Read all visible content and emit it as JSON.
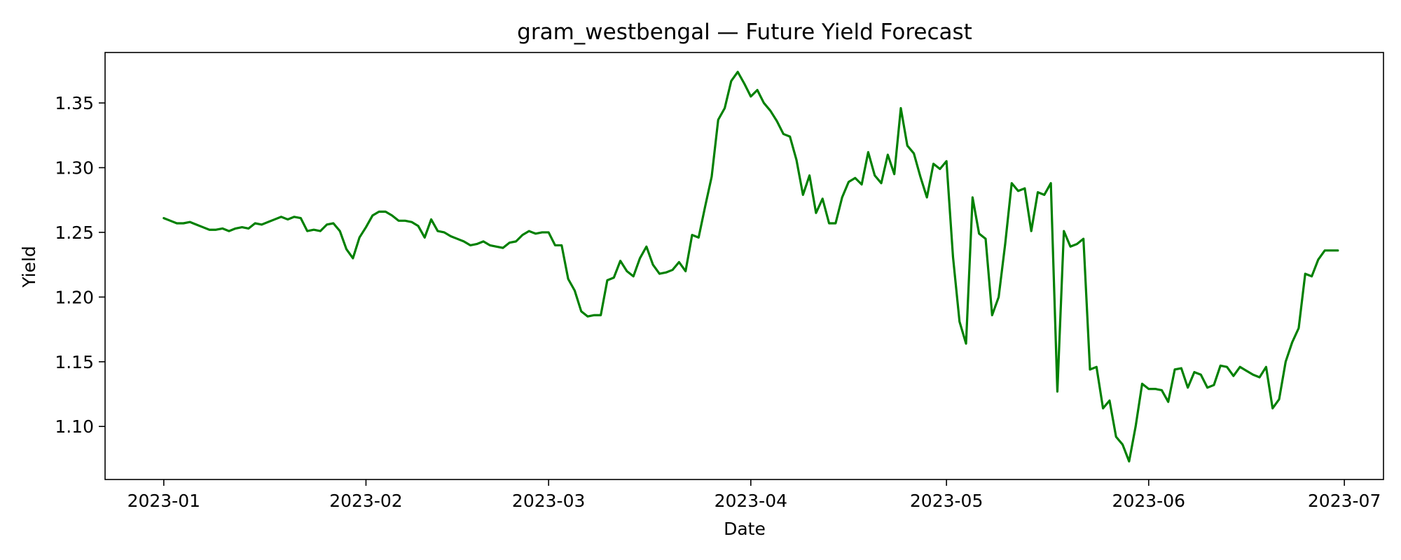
{
  "chart_data": {
    "type": "line",
    "title": "gram_westbengal — Future Yield Forecast",
    "xlabel": "Date",
    "ylabel": "Yield",
    "x_start": "2023-01-01",
    "x_end": "2023-06-30",
    "xlim": [
      "2022-12-23",
      "2023-07-07"
    ],
    "ylim": [
      1.059,
      1.389
    ],
    "x_ticks": [
      "2023-01-01",
      "2023-02-01",
      "2023-03-01",
      "2023-04-01",
      "2023-05-01",
      "2023-06-01",
      "2023-07-01"
    ],
    "x_tick_labels": [
      "2023-01",
      "2023-02",
      "2023-03",
      "2023-04",
      "2023-05",
      "2023-06",
      "2023-07"
    ],
    "y_ticks": [
      1.1,
      1.15,
      1.2,
      1.25,
      1.3,
      1.35
    ],
    "y_tick_labels": [
      "1.10",
      "1.15",
      "1.20",
      "1.25",
      "1.30",
      "1.35"
    ],
    "grid": false,
    "legend": "none",
    "line_color": "#008000",
    "series": [
      {
        "points": [
          [
            "2023-01-01",
            1.261
          ],
          [
            "2023-01-02",
            1.259
          ],
          [
            "2023-01-03",
            1.257
          ],
          [
            "2023-01-04",
            1.257
          ],
          [
            "2023-01-05",
            1.258
          ],
          [
            "2023-01-06",
            1.256
          ],
          [
            "2023-01-07",
            1.254
          ],
          [
            "2023-01-08",
            1.252
          ],
          [
            "2023-01-09",
            1.252
          ],
          [
            "2023-01-10",
            1.253
          ],
          [
            "2023-01-11",
            1.251
          ],
          [
            "2023-01-12",
            1.253
          ],
          [
            "2023-01-13",
            1.254
          ],
          [
            "2023-01-14",
            1.253
          ],
          [
            "2023-01-15",
            1.257
          ],
          [
            "2023-01-16",
            1.256
          ],
          [
            "2023-01-17",
            1.258
          ],
          [
            "2023-01-18",
            1.26
          ],
          [
            "2023-01-19",
            1.262
          ],
          [
            "2023-01-20",
            1.26
          ],
          [
            "2023-01-21",
            1.262
          ],
          [
            "2023-01-22",
            1.261
          ],
          [
            "2023-01-23",
            1.251
          ],
          [
            "2023-01-24",
            1.252
          ],
          [
            "2023-01-25",
            1.251
          ],
          [
            "2023-01-26",
            1.256
          ],
          [
            "2023-01-27",
            1.257
          ],
          [
            "2023-01-28",
            1.251
          ],
          [
            "2023-01-29",
            1.237
          ],
          [
            "2023-01-30",
            1.23
          ],
          [
            "2023-01-31",
            1.246
          ],
          [
            "2023-02-01",
            1.254
          ],
          [
            "2023-02-02",
            1.263
          ],
          [
            "2023-02-03",
            1.266
          ],
          [
            "2023-02-04",
            1.266
          ],
          [
            "2023-02-05",
            1.263
          ],
          [
            "2023-02-06",
            1.259
          ],
          [
            "2023-02-07",
            1.259
          ],
          [
            "2023-02-08",
            1.258
          ],
          [
            "2023-02-09",
            1.255
          ],
          [
            "2023-02-10",
            1.246
          ],
          [
            "2023-02-11",
            1.26
          ],
          [
            "2023-02-12",
            1.251
          ],
          [
            "2023-02-13",
            1.25
          ],
          [
            "2023-02-14",
            1.247
          ],
          [
            "2023-02-15",
            1.245
          ],
          [
            "2023-02-16",
            1.243
          ],
          [
            "2023-02-17",
            1.24
          ],
          [
            "2023-02-18",
            1.241
          ],
          [
            "2023-02-19",
            1.243
          ],
          [
            "2023-02-20",
            1.24
          ],
          [
            "2023-02-21",
            1.239
          ],
          [
            "2023-02-22",
            1.238
          ],
          [
            "2023-02-23",
            1.242
          ],
          [
            "2023-02-24",
            1.243
          ],
          [
            "2023-02-25",
            1.248
          ],
          [
            "2023-02-26",
            1.251
          ],
          [
            "2023-02-27",
            1.249
          ],
          [
            "2023-02-28",
            1.25
          ],
          [
            "2023-03-01",
            1.25
          ],
          [
            "2023-03-02",
            1.24
          ],
          [
            "2023-03-03",
            1.24
          ],
          [
            "2023-03-04",
            1.214
          ],
          [
            "2023-03-05",
            1.205
          ],
          [
            "2023-03-06",
            1.189
          ],
          [
            "2023-03-07",
            1.185
          ],
          [
            "2023-03-08",
            1.186
          ],
          [
            "2023-03-09",
            1.186
          ],
          [
            "2023-03-10",
            1.213
          ],
          [
            "2023-03-11",
            1.215
          ],
          [
            "2023-03-12",
            1.228
          ],
          [
            "2023-03-13",
            1.22
          ],
          [
            "2023-03-14",
            1.216
          ],
          [
            "2023-03-15",
            1.23
          ],
          [
            "2023-03-16",
            1.239
          ],
          [
            "2023-03-17",
            1.225
          ],
          [
            "2023-03-18",
            1.218
          ],
          [
            "2023-03-19",
            1.219
          ],
          [
            "2023-03-20",
            1.221
          ],
          [
            "2023-03-21",
            1.227
          ],
          [
            "2023-03-22",
            1.22
          ],
          [
            "2023-03-23",
            1.248
          ],
          [
            "2023-03-24",
            1.246
          ],
          [
            "2023-03-25",
            1.27
          ],
          [
            "2023-03-26",
            1.293
          ],
          [
            "2023-03-27",
            1.337
          ],
          [
            "2023-03-28",
            1.346
          ],
          [
            "2023-03-29",
            1.367
          ],
          [
            "2023-03-30",
            1.374
          ],
          [
            "2023-03-31",
            1.365
          ],
          [
            "2023-04-01",
            1.355
          ],
          [
            "2023-04-02",
            1.36
          ],
          [
            "2023-04-03",
            1.35
          ],
          [
            "2023-04-04",
            1.344
          ],
          [
            "2023-04-05",
            1.336
          ],
          [
            "2023-04-06",
            1.326
          ],
          [
            "2023-04-07",
            1.324
          ],
          [
            "2023-04-08",
            1.306
          ],
          [
            "2023-04-09",
            1.279
          ],
          [
            "2023-04-10",
            1.294
          ],
          [
            "2023-04-11",
            1.265
          ],
          [
            "2023-04-12",
            1.276
          ],
          [
            "2023-04-13",
            1.257
          ],
          [
            "2023-04-14",
            1.257
          ],
          [
            "2023-04-15",
            1.277
          ],
          [
            "2023-04-16",
            1.289
          ],
          [
            "2023-04-17",
            1.292
          ],
          [
            "2023-04-18",
            1.287
          ],
          [
            "2023-04-19",
            1.312
          ],
          [
            "2023-04-20",
            1.294
          ],
          [
            "2023-04-21",
            1.288
          ],
          [
            "2023-04-22",
            1.31
          ],
          [
            "2023-04-23",
            1.295
          ],
          [
            "2023-04-24",
            1.346
          ],
          [
            "2023-04-25",
            1.317
          ],
          [
            "2023-04-26",
            1.311
          ],
          [
            "2023-04-27",
            1.293
          ],
          [
            "2023-04-28",
            1.277
          ],
          [
            "2023-04-29",
            1.303
          ],
          [
            "2023-04-30",
            1.299
          ],
          [
            "2023-05-01",
            1.305
          ],
          [
            "2023-05-02",
            1.231
          ],
          [
            "2023-05-03",
            1.181
          ],
          [
            "2023-05-04",
            1.164
          ],
          [
            "2023-05-05",
            1.277
          ],
          [
            "2023-05-06",
            1.249
          ],
          [
            "2023-05-07",
            1.245
          ],
          [
            "2023-05-08",
            1.186
          ],
          [
            "2023-05-09",
            1.2
          ],
          [
            "2023-05-10",
            1.241
          ],
          [
            "2023-05-11",
            1.288
          ],
          [
            "2023-05-12",
            1.282
          ],
          [
            "2023-05-13",
            1.284
          ],
          [
            "2023-05-14",
            1.251
          ],
          [
            "2023-05-15",
            1.281
          ],
          [
            "2023-05-16",
            1.279
          ],
          [
            "2023-05-17",
            1.288
          ],
          [
            "2023-05-18",
            1.127
          ],
          [
            "2023-05-19",
            1.251
          ],
          [
            "2023-05-20",
            1.239
          ],
          [
            "2023-05-21",
            1.241
          ],
          [
            "2023-05-22",
            1.245
          ],
          [
            "2023-05-23",
            1.144
          ],
          [
            "2023-05-24",
            1.146
          ],
          [
            "2023-05-25",
            1.114
          ],
          [
            "2023-05-26",
            1.12
          ],
          [
            "2023-05-27",
            1.092
          ],
          [
            "2023-05-28",
            1.086
          ],
          [
            "2023-05-29",
            1.073
          ],
          [
            "2023-05-30",
            1.1
          ],
          [
            "2023-05-31",
            1.133
          ],
          [
            "2023-06-01",
            1.129
          ],
          [
            "2023-06-02",
            1.129
          ],
          [
            "2023-06-03",
            1.128
          ],
          [
            "2023-06-04",
            1.119
          ],
          [
            "2023-06-05",
            1.144
          ],
          [
            "2023-06-06",
            1.145
          ],
          [
            "2023-06-07",
            1.13
          ],
          [
            "2023-06-08",
            1.142
          ],
          [
            "2023-06-09",
            1.14
          ],
          [
            "2023-06-10",
            1.13
          ],
          [
            "2023-06-11",
            1.132
          ],
          [
            "2023-06-12",
            1.147
          ],
          [
            "2023-06-13",
            1.146
          ],
          [
            "2023-06-14",
            1.139
          ],
          [
            "2023-06-15",
            1.146
          ],
          [
            "2023-06-16",
            1.143
          ],
          [
            "2023-06-17",
            1.14
          ],
          [
            "2023-06-18",
            1.138
          ],
          [
            "2023-06-19",
            1.146
          ],
          [
            "2023-06-20",
            1.114
          ],
          [
            "2023-06-21",
            1.121
          ],
          [
            "2023-06-22",
            1.15
          ],
          [
            "2023-06-23",
            1.165
          ],
          [
            "2023-06-24",
            1.176
          ],
          [
            "2023-06-25",
            1.218
          ],
          [
            "2023-06-26",
            1.216
          ],
          [
            "2023-06-27",
            1.229
          ],
          [
            "2023-06-28",
            1.236
          ],
          [
            "2023-06-29",
            1.236
          ],
          [
            "2023-06-30",
            1.236
          ]
        ]
      }
    ]
  }
}
